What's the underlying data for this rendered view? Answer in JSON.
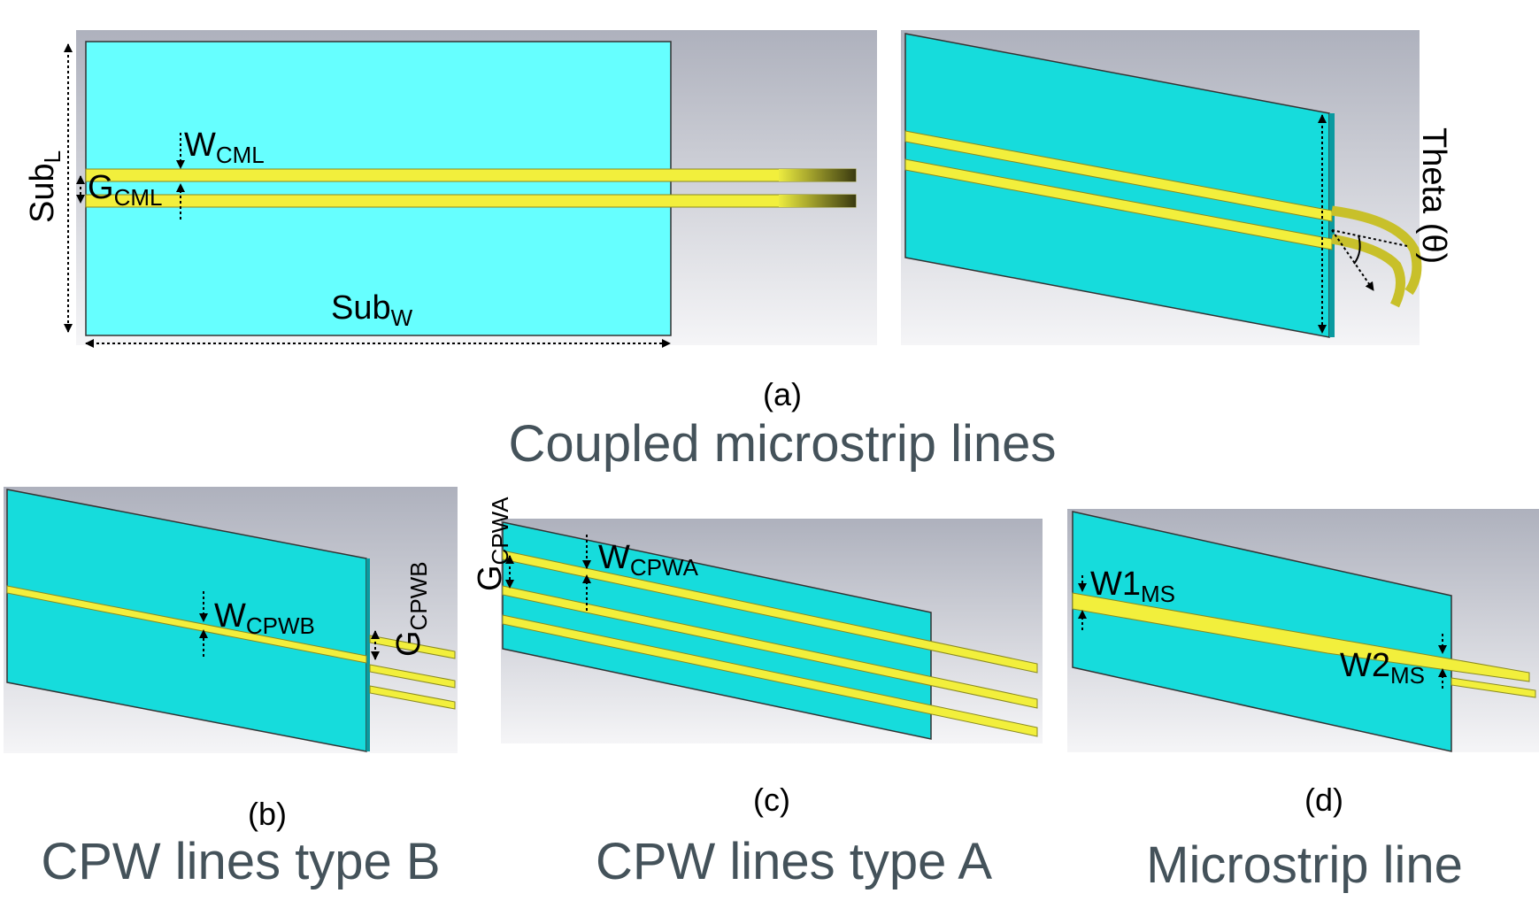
{
  "panel_a": {
    "sub_l": {
      "main": "Sub",
      "sub": "L"
    },
    "sub_w": {
      "main": "Sub",
      "sub": "W"
    },
    "w_cml": {
      "main": "W",
      "sub": "CML"
    },
    "g_cml": {
      "main": "G",
      "sub": "CML"
    },
    "theta": "Theta (θ)",
    "letter": "(a)",
    "caption": "Coupled microstrip lines"
  },
  "panel_b": {
    "w_cpwb": {
      "main": "W",
      "sub": "CPWB"
    },
    "g_cpwb": {
      "main": "G",
      "sub": "CPWB"
    },
    "letter": "(b)",
    "caption": "CPW lines type B"
  },
  "panel_c": {
    "g_cpwa": {
      "main": "G",
      "sub": "CPWA"
    },
    "w_cpwa": {
      "main": "W",
      "sub": "CPWA"
    },
    "letter": "(c)",
    "caption": "CPW lines type A"
  },
  "panel_d": {
    "w1_ms": {
      "main": "W1",
      "sub": "MS"
    },
    "w2_ms": {
      "main": "W2",
      "sub": "MS"
    },
    "letter": "(d)",
    "caption": "Microstrip line"
  },
  "colors": {
    "substrate_top": "#66ffff",
    "substrate_3d": "#16dcdc",
    "strip": "#f2ef3c",
    "background_gradient": "#c6c8d2"
  }
}
